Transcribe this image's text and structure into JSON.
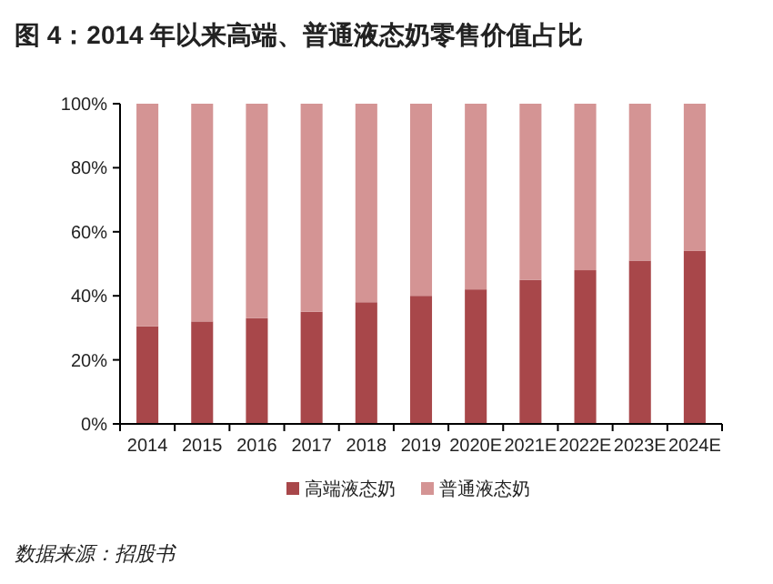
{
  "chart_data": {
    "type": "bar",
    "stacked": true,
    "title": "图 4：2014 年以来高端、普通液态奶零售价值占比",
    "categories": [
      "2014",
      "2015",
      "2016",
      "2017",
      "2018",
      "2019",
      "2020E",
      "2021E",
      "2022E",
      "2023E",
      "2024E"
    ],
    "series": [
      {
        "name": "高端液态奶",
        "color": "#a8474a",
        "values": [
          30.5,
          32,
          33,
          35,
          38,
          40,
          42,
          45,
          48,
          51,
          54
        ]
      },
      {
        "name": "普通液态奶",
        "color": "#d49494",
        "values": [
          69.5,
          68,
          67,
          65,
          62,
          60,
          58,
          55,
          52,
          49,
          46
        ]
      }
    ],
    "ylim": [
      0,
      100
    ],
    "yticks": [
      {
        "value": 0,
        "label": "0%"
      },
      {
        "value": 20,
        "label": "20%"
      },
      {
        "value": 40,
        "label": "40%"
      },
      {
        "value": 60,
        "label": "60%"
      },
      {
        "value": 80,
        "label": "80%"
      },
      {
        "value": 100,
        "label": "100%"
      }
    ],
    "grid": false,
    "legend": "bottom",
    "annotations": [
      "数据来源：招股书"
    ]
  }
}
